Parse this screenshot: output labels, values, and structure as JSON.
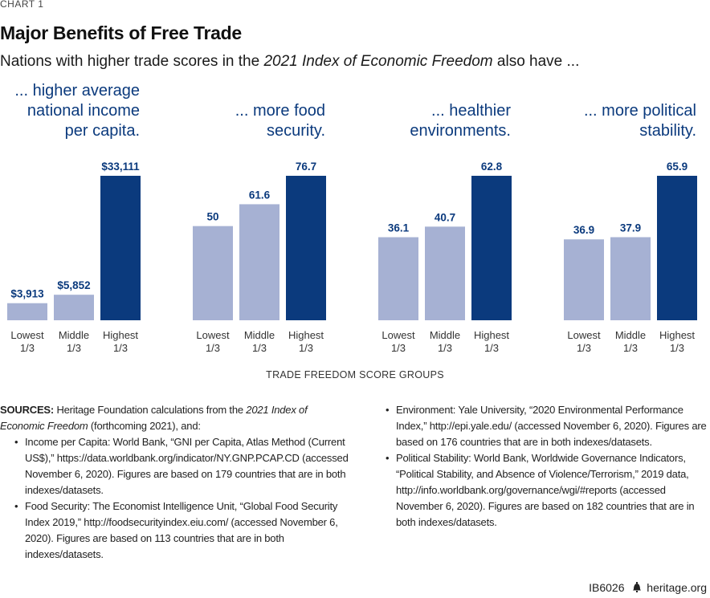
{
  "chart_label": "CHART 1",
  "title": "Major Benefits of Free Trade",
  "subtitle": {
    "before": "Nations with higher trade scores in the ",
    "italic": "2021 Index of Economic Freedom",
    "after": " also have ..."
  },
  "colors": {
    "light_bar": "#a6b1d3",
    "dark_bar": "#0b3a7d",
    "heading": "#0b3a7d"
  },
  "chart_data": [
    {
      "type": "bar",
      "title": "... higher average national income per capita.",
      "title_lines": [
        "... higher average",
        "national income",
        "per capita."
      ],
      "categories": [
        "Lowest 1/3",
        "Middle 1/3",
        "Highest 1/3"
      ],
      "category_lines": [
        [
          "Lowest",
          "1/3"
        ],
        [
          "Middle",
          "1/3"
        ],
        [
          "Highest",
          "1/3"
        ]
      ],
      "values": [
        3913,
        5852,
        33111
      ],
      "value_labels": [
        "$3,913",
        "$5,852",
        "$33,111"
      ],
      "ylim": [
        0,
        33111
      ]
    },
    {
      "type": "bar",
      "title": "... more food security.",
      "title_lines": [
        "... more food",
        "security."
      ],
      "categories": [
        "Lowest 1/3",
        "Middle 1/3",
        "Highest 1/3"
      ],
      "category_lines": [
        [
          "Lowest",
          "1/3"
        ],
        [
          "Middle",
          "1/3"
        ],
        [
          "Highest",
          "1/3"
        ]
      ],
      "values": [
        50,
        61.6,
        76.7
      ],
      "value_labels": [
        "50",
        "61.6",
        "76.7"
      ],
      "ylim": [
        0,
        76.7
      ]
    },
    {
      "type": "bar",
      "title": "... healthier environments.",
      "title_lines": [
        "... healthier",
        "environments."
      ],
      "categories": [
        "Lowest 1/3",
        "Middle 1/3",
        "Highest 1/3"
      ],
      "category_lines": [
        [
          "Lowest",
          "1/3"
        ],
        [
          "Middle",
          "1/3"
        ],
        [
          "Highest",
          "1/3"
        ]
      ],
      "values": [
        36.1,
        40.7,
        62.8
      ],
      "value_labels": [
        "36.1",
        "40.7",
        "62.8"
      ],
      "ylim": [
        0,
        62.8
      ]
    },
    {
      "type": "bar",
      "title": "... more political stability.",
      "title_lines": [
        "... more political",
        "stability."
      ],
      "categories": [
        "Lowest 1/3",
        "Middle 1/3",
        "Highest 1/3"
      ],
      "category_lines": [
        [
          "Lowest",
          "1/3"
        ],
        [
          "Middle",
          "1/3"
        ],
        [
          "Highest",
          "1/3"
        ]
      ],
      "values": [
        36.9,
        37.9,
        65.9
      ],
      "value_labels": [
        "36.9",
        "37.9",
        "65.9"
      ],
      "ylim": [
        0,
        65.9
      ]
    }
  ],
  "xaxis_title": "TRADE FREEDOM SCORE GROUPS",
  "sources": {
    "label": "SOURCES:",
    "intro_before": " Heritage Foundation calculations from the ",
    "intro_italic": "2021 Index of Economic Freedom",
    "intro_after": " (forthcoming 2021), and:",
    "items_left": [
      "Income per Capita: World Bank, “GNI per Capita, Atlas Method (Current US$),” https://data.worldbank.org/indicator/NY.GNP.PCAP.CD (accessed November 6, 2020). Figures are based on 179 countries that are in both indexes/datasets.",
      "Food Security: The Economist Intelligence Unit, “Global Food Security Index 2019,” http://foodsecurityindex.eiu.com/ (accessed November 6, 2020). Figures are based on 113 countries that are in both indexes/datasets."
    ],
    "items_right": [
      "Environment: Yale University, “2020 Environmental Performance Index,” http://epi.yale.edu/ (accessed November 6, 2020). Figures are based on 176 countries that are in both indexes/datasets.",
      "Political Stability: World Bank, Worldwide Governance Indicators, “Political Stability, and Absence of Violence/Terrorism,” 2019 data, http://info.worldbank.org/governance/wgi/#reports (accessed November 6, 2020). Figures are based on 182 countries that are in both indexes/datasets."
    ]
  },
  "footer": {
    "code": "IB6026",
    "icon": "liberty-bell-icon",
    "site": "heritage.org"
  }
}
